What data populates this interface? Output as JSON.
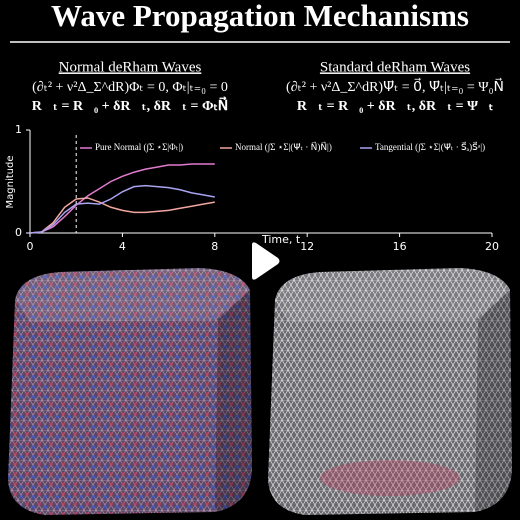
{
  "header": {
    "title": "Wave Propagation Mechanisms"
  },
  "panels": [
    {
      "heading": "Normal deRham Waves",
      "equation_1": "(∂ₜ² + ν²Δ_Σ^dR)Φₜ = 0, Φₜ|ₜ₌₀ = 0",
      "equation_2": "R⃗ₜ = R⃗₀ + δR⃗ₜ, δR⃗ₜ = ΦₜN⃗"
    },
    {
      "heading": "Standard deRham Waves",
      "equation_1": "(∂ₜ² + ν²Δ_Σ^dR)Ψ⃗ₜ = 0⃗, Ψ⃗ₜ|ₜ₌₀ = Ψ₀N⃗",
      "equation_2": "R⃗ₜ = R⃗₀ + δR⃗ₜ, δR⃗ₜ = Ψ⃗ₜ"
    }
  ],
  "chart_data": {
    "type": "line",
    "x_label": "Time, t",
    "y_label": "Magnitude",
    "x": [
      0,
      0.5,
      1,
      1.5,
      2,
      2.5,
      3,
      3.5,
      4,
      4.5,
      5,
      5.5,
      6,
      6.5,
      7,
      7.5,
      8
    ],
    "series": [
      {
        "name": "Pure Normal (∫Σ ⋆Σ|Φₜ|)",
        "color": "#e27ad0",
        "values": [
          0,
          0.01,
          0.06,
          0.16,
          0.27,
          0.36,
          0.43,
          0.5,
          0.55,
          0.59,
          0.62,
          0.64,
          0.66,
          0.66,
          0.67,
          0.67,
          0.67
        ]
      },
      {
        "name": "Normal (∫Σ ⋆Σ|(Ψ⃗ₜ · N⃗)N⃗|)",
        "color": "#f2a7a0",
        "values": [
          0,
          0.01,
          0.1,
          0.25,
          0.33,
          0.34,
          0.3,
          0.25,
          0.22,
          0.2,
          0.2,
          0.21,
          0.22,
          0.24,
          0.26,
          0.28,
          0.3
        ]
      },
      {
        "name": "Tangential (∫Σ ⋆Σ|(Ψ⃗ₜ · S⃗ₐ)S⃗ᵃ|)",
        "color": "#a8a4f0",
        "values": [
          0,
          0.01,
          0.08,
          0.2,
          0.28,
          0.29,
          0.28,
          0.33,
          0.4,
          0.45,
          0.46,
          0.45,
          0.44,
          0.42,
          0.39,
          0.37,
          0.35
        ]
      }
    ],
    "marker_x": 2,
    "xlim": [
      0,
      20
    ],
    "xticks": [
      0,
      4,
      8,
      12,
      16,
      20
    ],
    "ylim": [
      0,
      1
    ],
    "yticks": [
      0,
      1
    ]
  }
}
